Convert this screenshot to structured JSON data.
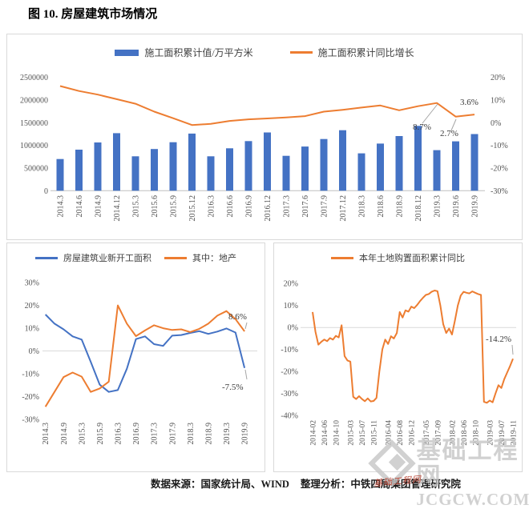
{
  "page": {
    "title": "图 10. 房屋建筑市场情况",
    "source_prefix": "数据来源：国家统计局、WIND",
    "source_suffix": "整理分析：中铁四局集团管理研究院"
  },
  "colors": {
    "bar_blue": "#4472C4",
    "line_orange": "#ED7D31",
    "line_blue": "#4472C4",
    "axis_text": "#545454",
    "gridline": "#D9D9D9",
    "panel_border": "#D9D9D9",
    "watermark_gray": "#C7C7C7",
    "stamp_red": "#BB4A3A"
  },
  "watermark": {
    "site_name": "基础工程网",
    "site_url": "JCGCW.COM",
    "stamp_text": "基础工程网"
  },
  "chart_data": [
    {
      "id": "construction-area-combo",
      "type": "bar",
      "subtype": "bar+line dual axis",
      "categories": [
        "2014.3",
        "2014.6",
        "2014.9",
        "2014.12",
        "2015.3",
        "2015.6",
        "2015.9",
        "2015.12",
        "2016.3",
        "2016.6",
        "2016.9",
        "2016.12",
        "2017.3",
        "2017.6",
        "2017.9",
        "2017.12",
        "2018.3",
        "2018.6",
        "2018.9",
        "2018.12",
        "2019.3",
        "2019.6",
        "2019.9"
      ],
      "series": [
        {
          "name": "施工面积累计值/万平方米",
          "type": "bar",
          "axis": "left",
          "color": "#4472C4",
          "values": [
            700000,
            905000,
            1065000,
            1270000,
            760000,
            920000,
            1070000,
            1260000,
            760000,
            935000,
            1095000,
            1285000,
            770000,
            975000,
            1140000,
            1335000,
            825000,
            1040000,
            1205000,
            1430000,
            895000,
            1090000,
            1250000
          ]
        },
        {
          "name": "施工面积累计同比增长",
          "type": "line",
          "axis": "right",
          "color": "#ED7D31",
          "values": [
            16.2,
            14.0,
            12.4,
            10.4,
            8.4,
            4.9,
            2.0,
            -1.0,
            -0.5,
            0.8,
            1.5,
            1.9,
            2.3,
            2.9,
            4.9,
            5.7,
            6.7,
            7.6,
            5.5,
            7.3,
            8.7,
            2.7,
            3.6
          ]
        }
      ],
      "left_axis": {
        "min": 0,
        "max": 2500000,
        "tick_labels_bottom_up": [
          "0",
          "500000",
          "1000000",
          "1500000",
          "2000000",
          "2500000"
        ]
      },
      "right_axis": {
        "min": -30,
        "max": 20,
        "tick_labels_bottom_up": [
          "-30%",
          "-20%",
          "-10%",
          "0%",
          "10%",
          "20%"
        ]
      },
      "annotations": [
        {
          "label": "8.7%",
          "series": "施工面积累计同比增长",
          "point": "2019.3"
        },
        {
          "label": "2.7%",
          "series": "施工面积累计同比增长",
          "point": "2019.6"
        },
        {
          "label": "3.6%",
          "series": "施工面积累计同比增长",
          "point": "2019.9"
        }
      ],
      "grid": "off",
      "legend_position": "top-center"
    },
    {
      "id": "new-construction-starts",
      "type": "line",
      "x_labels": [
        "2014.3",
        "2014.9",
        "2015.3",
        "2015.9",
        "2016.3",
        "2016.9",
        "2017.3",
        "2017.9",
        "2018.3",
        "2018.9",
        "2019.3",
        "2019.9"
      ],
      "points_per_label": 2,
      "series": [
        {
          "name": "房屋建筑业新开工面积",
          "color": "#4472C4",
          "values": [
            16.0,
            12.0,
            9.5,
            6.4,
            5.0,
            -4.8,
            -14.8,
            -18.0,
            -17.2,
            -7.8,
            5.2,
            6.4,
            3.0,
            2.2,
            6.7,
            7.0,
            7.9,
            8.7,
            7.5,
            8.5,
            9.9,
            8.1,
            -7.5
          ]
        },
        {
          "name": "其中：地产",
          "color": "#ED7D31",
          "values": [
            -24.5,
            -18.0,
            -11.5,
            -9.5,
            -11.3,
            -18.0,
            -16.5,
            -13.5,
            20.0,
            12.0,
            6.5,
            9.0,
            11.3,
            10.0,
            9.2,
            9.5,
            8.3,
            9.7,
            12.0,
            15.5,
            17.5,
            14.0,
            8.6
          ]
        }
      ],
      "y_axis": {
        "min": -30,
        "max": 30,
        "tick_labels_top_down": [
          "30%",
          "20%",
          "10%",
          "0%",
          "-10%",
          "-20%",
          "-30%"
        ]
      },
      "annotations": [
        {
          "label": "8.6%",
          "series": "其中：地产",
          "point": "2019.9"
        },
        {
          "label": "-7.5%",
          "series": "房屋建筑业新开工面积",
          "point": "2019.9"
        }
      ],
      "grid": "zero-line-only",
      "legend_position": "top-center"
    },
    {
      "id": "land-purchase-area",
      "type": "line",
      "x_labels": [
        "2014-02",
        "2014-06",
        "2014-10",
        "2015-03",
        "2015-07",
        "2015-11",
        "2016-04",
        "2016-08",
        "2016-12",
        "2017-05",
        "2017-09",
        "2018-02",
        "2018-06",
        "2018-10",
        "2019-03",
        "2019-07",
        "2019-11"
      ],
      "x_label_point_indices": [
        0,
        4,
        8,
        13,
        17,
        21,
        26,
        30,
        34,
        39,
        43,
        48,
        52,
        56,
        61,
        65,
        69
      ],
      "series": [
        {
          "name": "本年土地购置面积累计同比",
          "color": "#ED7D31",
          "values": [
            7,
            -2,
            -7.8,
            -6.5,
            -5.5,
            -6.2,
            -4.8,
            -5.5,
            -3.8,
            -4.5,
            1,
            -13,
            -15,
            -15.5,
            -31.5,
            -32.5,
            -31.2,
            -32.5,
            -33.5,
            -32.2,
            -33.6,
            -33.4,
            -32,
            -20,
            -10,
            -5.5,
            -7.5,
            -4,
            -5,
            -2.5,
            7,
            4.5,
            7.8,
            7.2,
            9.5,
            8.8,
            10.2,
            12,
            13.5,
            14.8,
            15.2,
            16.2,
            16.8,
            16.5,
            10,
            1.5,
            -2.5,
            -0.5,
            -3.2,
            3,
            10,
            14.5,
            16.2,
            15.8,
            15.5,
            16.4,
            15.8,
            15.2,
            14.8,
            -33.8,
            -34.2,
            -33.2,
            -34,
            -30,
            -26.2,
            -27.5,
            -23.5,
            -20.5,
            -17.5,
            -14.2
          ]
        }
      ],
      "y_axis": {
        "min": -40,
        "max": 20,
        "tick_labels_top_down": [
          "20%",
          "10%",
          "0%",
          "-10%",
          "-20%",
          "-30%",
          "-40%"
        ]
      },
      "annotations": [
        {
          "label": "-14.2%",
          "series": "本年土地购置面积累计同比",
          "point": "2019-11"
        }
      ],
      "grid": "zero-line-only",
      "legend_position": "top-center"
    }
  ]
}
